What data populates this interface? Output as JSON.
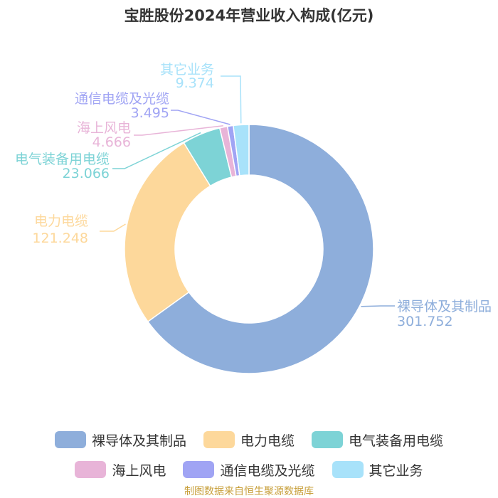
{
  "title": "宝胜股份2024年营业收入构成(亿元)",
  "source": "制图数据来自恒生聚源数据库",
  "chart_data": {
    "type": "pie",
    "variant": "donut",
    "title": "宝胜股份2024年营业收入构成(亿元)",
    "legend_position": "bottom",
    "categories": [
      "裸导体及其制品",
      "电力电缆",
      "电气装备用电缆",
      "海上风电",
      "通信电缆及光缆",
      "其它业务"
    ],
    "values": [
      301.752,
      121.248,
      23.066,
      4.666,
      3.495,
      9.374
    ],
    "value_labels": [
      "301.752",
      "121.248",
      "23.066",
      "4.666",
      "3.495",
      "9.374"
    ],
    "colors": [
      "#8eaedb",
      "#fdd89b",
      "#7dd3d6",
      "#e8b4d8",
      "#a0a4f4",
      "#a8e2fa"
    ]
  }
}
